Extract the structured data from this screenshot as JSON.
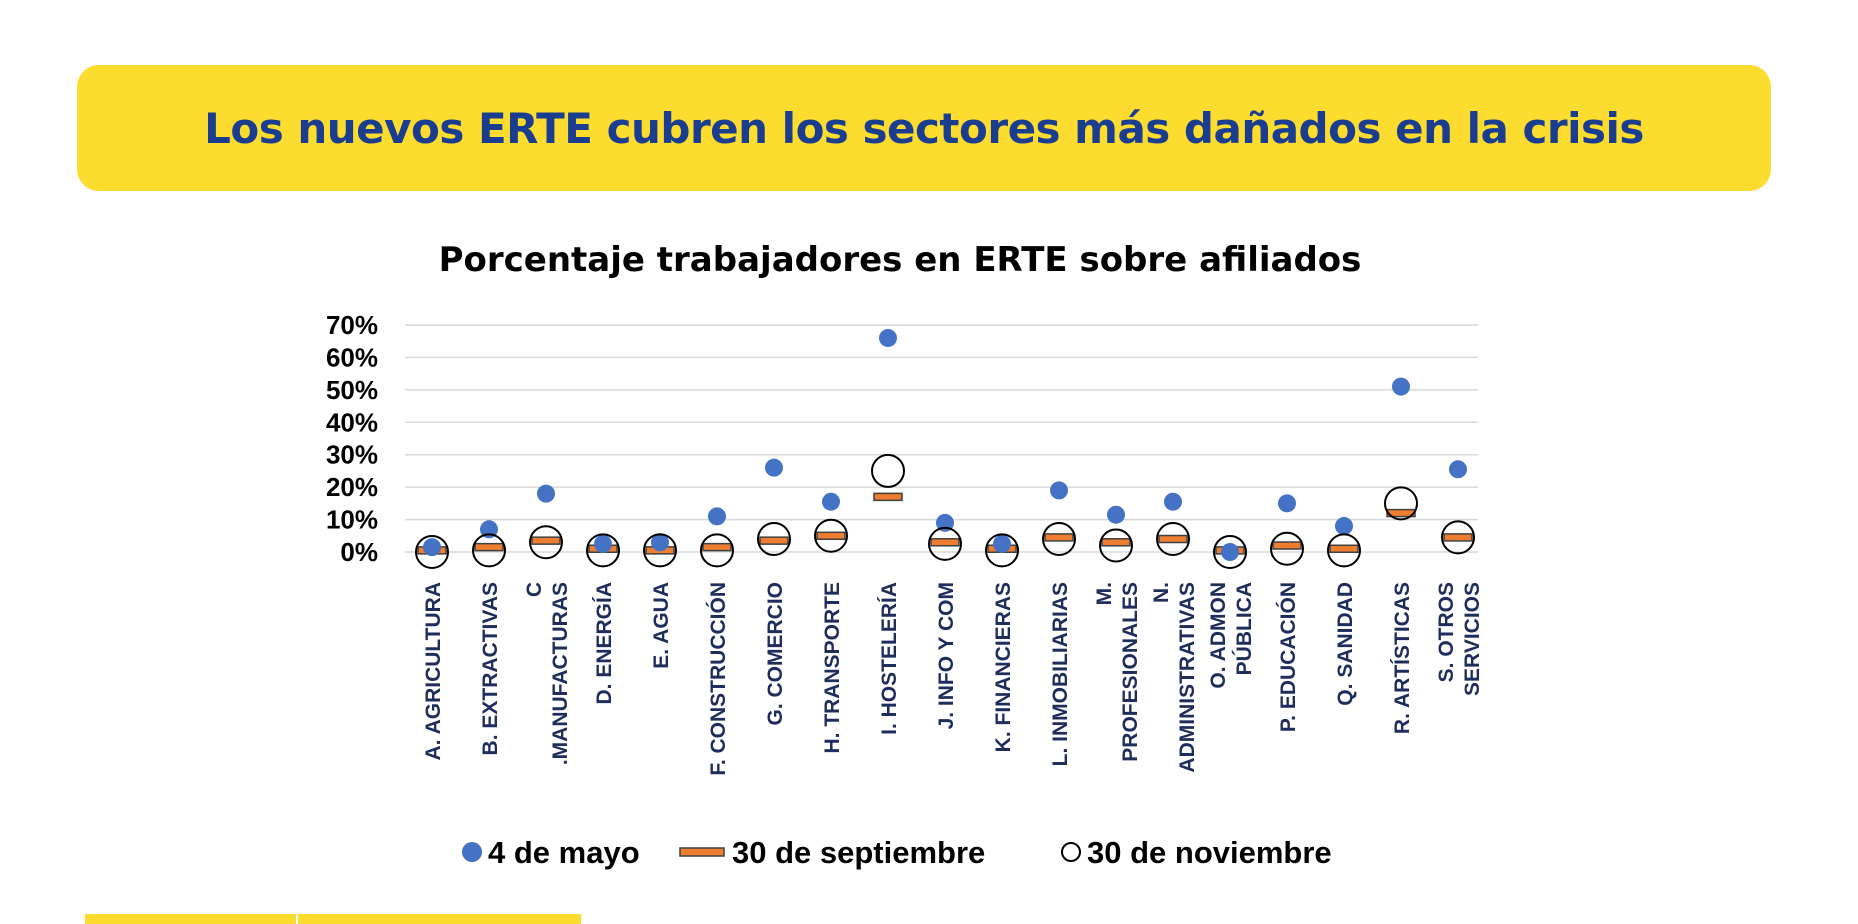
{
  "banner": {
    "title": "Los nuevos ERTE cubren los sectores más dañados en la crisis"
  },
  "colors": {
    "banner_bg": "#fcdc2e",
    "banner_text": "#1b3d8f",
    "series_may": "#4472c4",
    "series_sep": "#ed7d31",
    "label_text": "#1f2d5c"
  },
  "chart_data": {
    "type": "scatter",
    "title": "Porcentaje trabajadores en ERTE sobre afiliados",
    "xlabel": "",
    "ylabel": "",
    "ylim": [
      0,
      70
    ],
    "yticks": [
      "0%",
      "10%",
      "20%",
      "30%",
      "40%",
      "50%",
      "60%",
      "70%"
    ],
    "grid": true,
    "legend_position": "bottom",
    "categories": [
      [
        "A. AGRICULTURA"
      ],
      [
        "B. EXTRACTIVAS"
      ],
      [
        "C",
        ".MANUFACTURAS"
      ],
      [
        "D. ENERGÍA"
      ],
      [
        "E. AGUA"
      ],
      [
        "F. CONSTRUCCIÓN"
      ],
      [
        "G. COMERCIO"
      ],
      [
        "H. TRANSPORTE"
      ],
      [
        "I. HOSTELERÍA"
      ],
      [
        "J. INFO Y COM"
      ],
      [
        "K. FINANCIERAS"
      ],
      [
        "L. INMOBILIARIAS"
      ],
      [
        "M.",
        "PROFESIONALES"
      ],
      [
        "N.",
        "ADMINISTRATIVAS"
      ],
      [
        "O. ADMON",
        "PÚBLICA"
      ],
      [
        "P. EDUCACIÓN"
      ],
      [
        "Q. SANIDAD"
      ],
      [
        "R. ARTÍSTICAS"
      ],
      [
        "S. OTROS",
        "SERVICIOS"
      ]
    ],
    "series": [
      {
        "name": "4 de mayo",
        "marker": "filled-circle",
        "values": [
          1.5,
          7,
          18,
          2.5,
          3,
          11,
          26,
          15.5,
          66,
          9,
          2.5,
          19,
          11.5,
          15.5,
          0,
          15,
          8,
          51,
          25.5
        ]
      },
      {
        "name": "30 de septiembre",
        "marker": "dash",
        "values": [
          0.5,
          1.5,
          3.5,
          1,
          0.5,
          1.5,
          3.5,
          5,
          17,
          3,
          1,
          4.5,
          3,
          4,
          0.5,
          2,
          1,
          12,
          4.5
        ]
      },
      {
        "name": "30 de noviembre",
        "marker": "open-circle",
        "values": [
          0,
          0.5,
          3,
          0.5,
          0.5,
          0.5,
          4,
          5,
          25,
          2.5,
          0.5,
          4,
          2,
          4,
          0,
          1,
          0.5,
          15,
          4.5
        ]
      }
    ]
  }
}
